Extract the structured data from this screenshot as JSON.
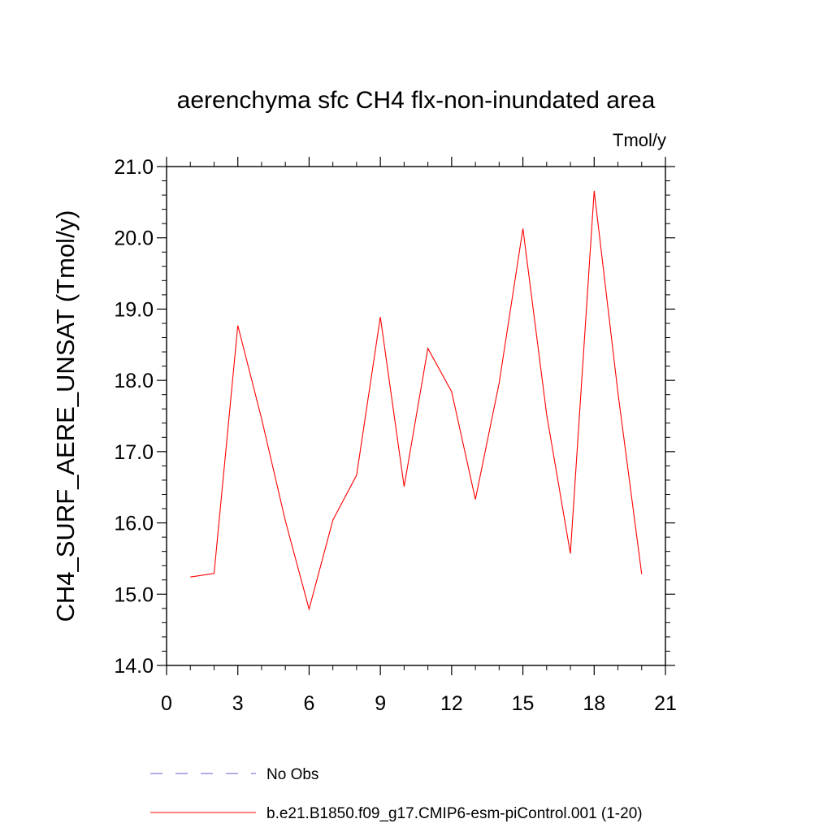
{
  "chart_data": {
    "type": "line",
    "title": "aerenchyma sfc CH4 flx-non-inundated area",
    "units_label": "Tmol/y",
    "ylabel": "CH4_SURF_AERE_UNSAT  (Tmol/y)",
    "xlabel": "",
    "xlim": [
      0,
      21
    ],
    "ylim": [
      14.0,
      21.0
    ],
    "xticks": [
      0,
      3,
      6,
      9,
      12,
      15,
      18,
      21
    ],
    "xtick_labels": [
      "0",
      "3",
      "6",
      "9",
      "12",
      "15",
      "18",
      "21"
    ],
    "yticks": [
      14.0,
      15.0,
      16.0,
      17.0,
      18.0,
      19.0,
      20.0,
      21.0
    ],
    "ytick_labels": [
      "14.0",
      "15.0",
      "16.0",
      "17.0",
      "18.0",
      "19.0",
      "20.0",
      "21.0"
    ],
    "grid": false,
    "legend_position": "bottom",
    "series": [
      {
        "name": "b.e21.B1850.f09_g17.CMIP6-esm-piControl.001 (1-20)",
        "color": "#ff0000",
        "style": "solid",
        "x": [
          1,
          2,
          3,
          4,
          5,
          6,
          7,
          8,
          9,
          10,
          11,
          12,
          13,
          14,
          15,
          16,
          17,
          18,
          19,
          20
        ],
        "values": [
          15.24,
          15.29,
          18.77,
          17.46,
          16.03,
          14.79,
          16.04,
          16.67,
          18.89,
          16.51,
          18.45,
          17.84,
          16.33,
          17.96,
          20.13,
          17.52,
          15.57,
          20.66,
          17.83,
          15.28
        ]
      }
    ],
    "legend": [
      {
        "label": "No Obs",
        "color": "#6a5acd",
        "style": "dashed"
      },
      {
        "label": "b.e21.B1850.f09_g17.CMIP6-esm-piControl.001 (1-20)",
        "color": "#ff0000",
        "style": "solid"
      }
    ]
  }
}
